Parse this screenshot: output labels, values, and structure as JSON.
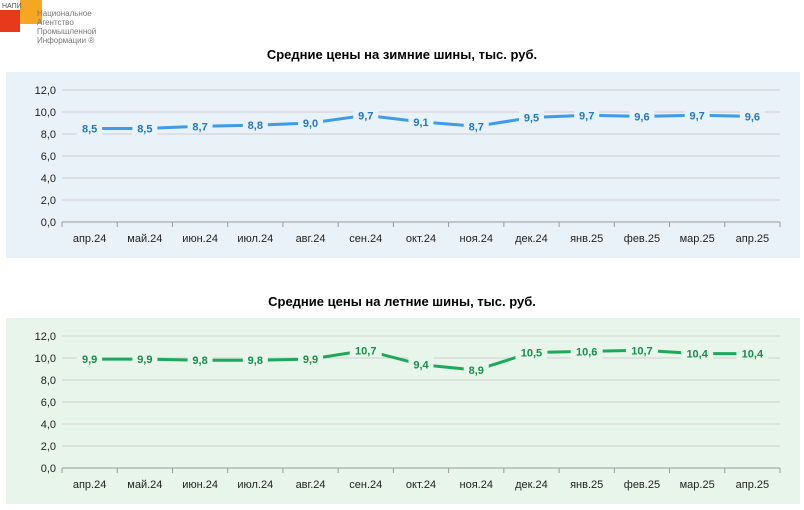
{
  "logo": {
    "abbr": "НАПИ",
    "lines": [
      "Национальное",
      "Агентство",
      "Промышленной",
      "Информации ®"
    ]
  },
  "colors": {
    "winter_line": "#3d9be9",
    "winter_label": "#1f78c8",
    "winter_bg": "#e9f2f8",
    "summer_line": "#1ea85a",
    "summer_label": "#14904a",
    "summer_bg": "#e8f5ea"
  },
  "chart_data": [
    {
      "type": "line",
      "title": "Средние цены на зимние шины, тыс. руб.",
      "categories": [
        "апр.24",
        "май.24",
        "июн.24",
        "июл.24",
        "авг.24",
        "сен.24",
        "окт.24",
        "ноя.24",
        "дек.24",
        "янв.25",
        "фев.25",
        "мар.25",
        "апр.25"
      ],
      "series": [
        {
          "values": [
            8.5,
            8.5,
            8.7,
            8.8,
            9.0,
            9.7,
            9.1,
            8.7,
            9.5,
            9.7,
            9.6,
            9.7,
            9.6
          ]
        }
      ],
      "data_labels": [
        "8,5",
        "8,5",
        "8,7",
        "8,8",
        "9,0",
        "9,7",
        "9,1",
        "8,7",
        "9,5",
        "9,7",
        "9,6",
        "9,7",
        "9,6"
      ],
      "yticks": [
        "0,0",
        "2,0",
        "4,0",
        "6,0",
        "8,0",
        "10,0",
        "12,0"
      ],
      "ylim": [
        0,
        12
      ],
      "grid": true
    },
    {
      "type": "line",
      "title": "Средние цены на летние шины, тыс. руб.",
      "categories": [
        "апр.24",
        "май.24",
        "июн.24",
        "июл.24",
        "авг.24",
        "сен.24",
        "окт.24",
        "ноя.24",
        "дек.24",
        "янв.25",
        "фев.25",
        "мар.25",
        "апр.25"
      ],
      "series": [
        {
          "values": [
            9.9,
            9.9,
            9.8,
            9.8,
            9.9,
            10.7,
            9.4,
            8.9,
            10.5,
            10.6,
            10.7,
            10.4,
            10.4
          ]
        }
      ],
      "data_labels": [
        "9,9",
        "9,9",
        "9,8",
        "9,8",
        "9,9",
        "10,7",
        "9,4",
        "8,9",
        "10,5",
        "10,6",
        "10,7",
        "10,4",
        "10,4"
      ],
      "yticks": [
        "0,0",
        "2,0",
        "4,0",
        "6,0",
        "8,0",
        "10,0",
        "12,0"
      ],
      "ylim": [
        0,
        12
      ],
      "grid": true
    }
  ]
}
